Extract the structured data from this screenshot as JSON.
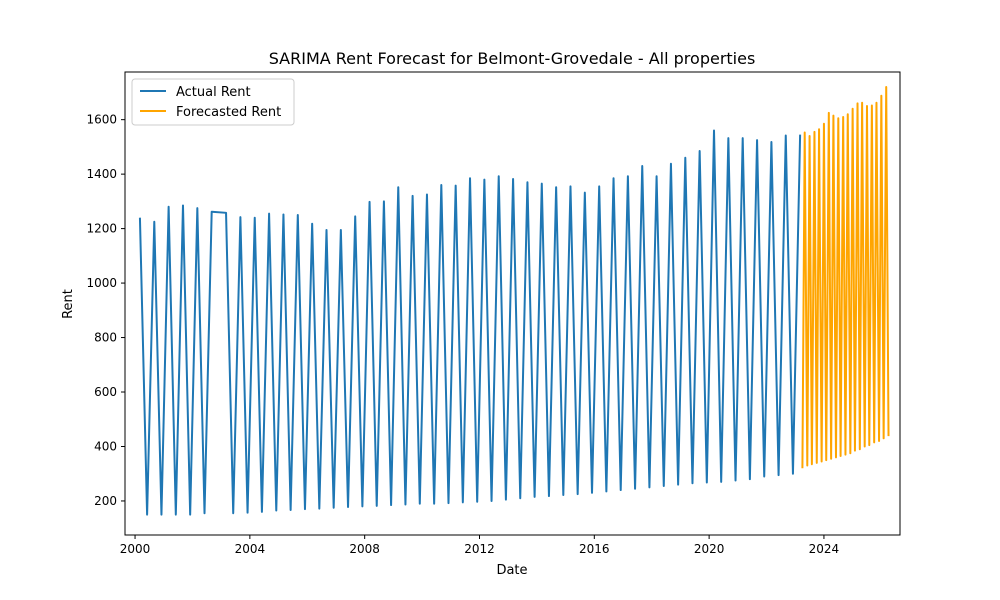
{
  "chart_data": {
    "type": "line",
    "title": "SARIMA Rent Forecast for Belmont-Grovedale - All properties",
    "xlabel": "Date",
    "ylabel": "Rent",
    "xlim": [
      1999.65,
      2026.65
    ],
    "ylim": [
      75,
      1775
    ],
    "x_ticks": [
      2000,
      2004,
      2008,
      2012,
      2016,
      2020,
      2024
    ],
    "x_tick_labels": [
      "2000",
      "2004",
      "2008",
      "2012",
      "2016",
      "2020",
      "2024"
    ],
    "y_ticks": [
      200,
      400,
      600,
      800,
      1000,
      1200,
      1400,
      1600
    ],
    "y_tick_labels": [
      "200",
      "400",
      "600",
      "800",
      "1000",
      "1200",
      "1400",
      "1600"
    ],
    "grid": false,
    "legend_position": "top-left",
    "series": [
      {
        "name": "Actual Rent",
        "color": "#1f77b4",
        "points": [
          [
            2000.17,
            1240
          ],
          [
            2000.42,
            150
          ],
          [
            2000.67,
            1225
          ],
          [
            2000.92,
            150
          ],
          [
            2001.17,
            1280
          ],
          [
            2001.42,
            150
          ],
          [
            2001.67,
            1285
          ],
          [
            2001.92,
            150
          ],
          [
            2002.17,
            1275
          ],
          [
            2002.42,
            155
          ],
          [
            2002.67,
            1262
          ],
          [
            2003.17,
            1258
          ],
          [
            2003.42,
            155
          ],
          [
            2003.67,
            1242
          ],
          [
            2003.92,
            157
          ],
          [
            2004.17,
            1240
          ],
          [
            2004.42,
            160
          ],
          [
            2004.67,
            1255
          ],
          [
            2004.92,
            165
          ],
          [
            2005.17,
            1252
          ],
          [
            2005.42,
            167
          ],
          [
            2005.67,
            1250
          ],
          [
            2005.92,
            170
          ],
          [
            2006.17,
            1218
          ],
          [
            2006.42,
            172
          ],
          [
            2006.67,
            1195
          ],
          [
            2006.92,
            175
          ],
          [
            2007.17,
            1195
          ],
          [
            2007.42,
            178
          ],
          [
            2007.67,
            1245
          ],
          [
            2007.92,
            180
          ],
          [
            2008.17,
            1298
          ],
          [
            2008.42,
            182
          ],
          [
            2008.67,
            1300
          ],
          [
            2008.92,
            185
          ],
          [
            2009.17,
            1352
          ],
          [
            2009.42,
            187
          ],
          [
            2009.67,
            1320
          ],
          [
            2009.92,
            190
          ],
          [
            2010.17,
            1325
          ],
          [
            2010.42,
            190
          ],
          [
            2010.67,
            1360
          ],
          [
            2010.92,
            192
          ],
          [
            2011.17,
            1358
          ],
          [
            2011.42,
            195
          ],
          [
            2011.67,
            1385
          ],
          [
            2011.92,
            197
          ],
          [
            2012.17,
            1380
          ],
          [
            2012.42,
            200
          ],
          [
            2012.67,
            1392
          ],
          [
            2012.92,
            205
          ],
          [
            2013.17,
            1382
          ],
          [
            2013.42,
            210
          ],
          [
            2013.67,
            1370
          ],
          [
            2013.92,
            215
          ],
          [
            2014.17,
            1365
          ],
          [
            2014.42,
            218
          ],
          [
            2014.67,
            1352
          ],
          [
            2014.92,
            222
          ],
          [
            2015.17,
            1355
          ],
          [
            2015.42,
            225
          ],
          [
            2015.67,
            1332
          ],
          [
            2015.92,
            230
          ],
          [
            2016.17,
            1355
          ],
          [
            2016.42,
            235
          ],
          [
            2016.67,
            1385
          ],
          [
            2016.92,
            240
          ],
          [
            2017.17,
            1392
          ],
          [
            2017.42,
            245
          ],
          [
            2017.67,
            1430
          ],
          [
            2017.92,
            250
          ],
          [
            2018.17,
            1392
          ],
          [
            2018.42,
            255
          ],
          [
            2018.67,
            1438
          ],
          [
            2018.92,
            260
          ],
          [
            2019.17,
            1460
          ],
          [
            2019.42,
            265
          ],
          [
            2019.67,
            1485
          ],
          [
            2019.92,
            268
          ],
          [
            2020.17,
            1560
          ],
          [
            2020.42,
            270
          ],
          [
            2020.67,
            1532
          ],
          [
            2020.92,
            275
          ],
          [
            2021.17,
            1532
          ],
          [
            2021.42,
            280
          ],
          [
            2021.67,
            1525
          ],
          [
            2021.92,
            290
          ],
          [
            2022.17,
            1518
          ],
          [
            2022.42,
            295
          ],
          [
            2022.67,
            1542
          ],
          [
            2022.92,
            300
          ],
          [
            2023.17,
            1545
          ]
        ]
      },
      {
        "name": "Forecasted Rent",
        "color": "#ffa500",
        "points": [
          [
            2023.25,
            320
          ],
          [
            2023.33,
            1553
          ],
          [
            2023.42,
            330
          ],
          [
            2023.5,
            1540
          ],
          [
            2023.58,
            335
          ],
          [
            2023.67,
            1555
          ],
          [
            2023.75,
            340
          ],
          [
            2023.83,
            1565
          ],
          [
            2023.92,
            345
          ],
          [
            2024.0,
            1585
          ],
          [
            2024.08,
            350
          ],
          [
            2024.17,
            1625
          ],
          [
            2024.25,
            355
          ],
          [
            2024.33,
            1615
          ],
          [
            2024.42,
            360
          ],
          [
            2024.5,
            1605
          ],
          [
            2024.58,
            365
          ],
          [
            2024.67,
            1610
          ],
          [
            2024.75,
            370
          ],
          [
            2024.83,
            1620
          ],
          [
            2024.92,
            375
          ],
          [
            2025.0,
            1640
          ],
          [
            2025.08,
            385
          ],
          [
            2025.17,
            1660
          ],
          [
            2025.25,
            390
          ],
          [
            2025.33,
            1662
          ],
          [
            2025.42,
            400
          ],
          [
            2025.5,
            1650
          ],
          [
            2025.58,
            405
          ],
          [
            2025.67,
            1652
          ],
          [
            2025.75,
            415
          ],
          [
            2025.83,
            1662
          ],
          [
            2025.92,
            420
          ],
          [
            2026.0,
            1688
          ],
          [
            2026.08,
            430
          ],
          [
            2026.17,
            1720
          ],
          [
            2026.25,
            438
          ]
        ]
      }
    ]
  }
}
